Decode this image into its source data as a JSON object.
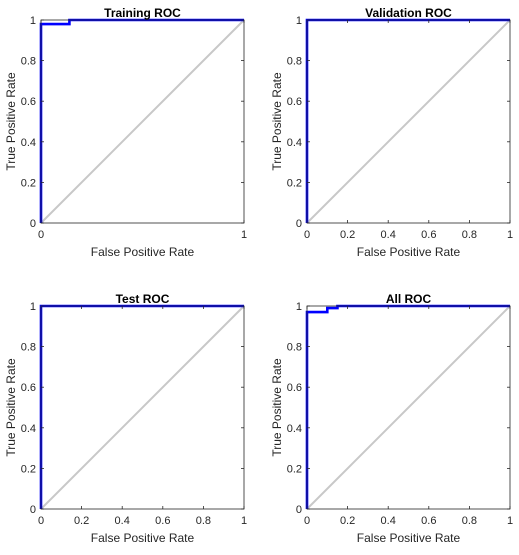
{
  "chart_data": [
    {
      "type": "line",
      "title": "Training ROC",
      "xlabel": "False Positive Rate",
      "ylabel": "True Positive Rate",
      "xlim": [
        0,
        1
      ],
      "ylim": [
        0,
        1
      ],
      "xticks": [
        "0",
        "1"
      ],
      "yticks": [
        "0",
        "0.2",
        "0.4",
        "0.6",
        "0.8",
        "1"
      ],
      "grid": false,
      "legend": "none",
      "series": [
        {
          "color": "#0000ff",
          "x": [
            0,
            0,
            0.14,
            0.14,
            1
          ],
          "y": [
            0,
            0.98,
            0.98,
            1,
            1
          ]
        }
      ],
      "reference_line": {
        "color": "#c8c8c8",
        "x": [
          0,
          1
        ],
        "y": [
          0,
          1
        ]
      }
    },
    {
      "type": "line",
      "title": "Validation ROC",
      "xlabel": "False Positive Rate",
      "ylabel": "True Positive Rate",
      "xlim": [
        0,
        1
      ],
      "ylim": [
        0,
        1
      ],
      "xticks": [
        "0",
        "0.2",
        "0.4",
        "0.6",
        "0.8",
        "1"
      ],
      "yticks": [
        "0",
        "0.2",
        "0.4",
        "0.6",
        "0.8",
        "1"
      ],
      "grid": false,
      "legend": "none",
      "series": [
        {
          "color": "#0000ff",
          "x": [
            0,
            0,
            1
          ],
          "y": [
            0,
            1,
            1
          ]
        }
      ],
      "reference_line": {
        "color": "#c8c8c8",
        "x": [
          0,
          1
        ],
        "y": [
          0,
          1
        ]
      }
    },
    {
      "type": "line",
      "title": "Test ROC",
      "xlabel": "False Positive Rate",
      "ylabel": "True Positive Rate",
      "xlim": [
        0,
        1
      ],
      "ylim": [
        0,
        1
      ],
      "xticks": [
        "0",
        "0.2",
        "0.4",
        "0.6",
        "0.8",
        "1"
      ],
      "yticks": [
        "0",
        "0.2",
        "0.4",
        "0.6",
        "0.8",
        "1"
      ],
      "grid": false,
      "legend": "none",
      "series": [
        {
          "color": "#0000ff",
          "x": [
            0,
            0,
            1
          ],
          "y": [
            0,
            1,
            1
          ]
        }
      ],
      "reference_line": {
        "color": "#c8c8c8",
        "x": [
          0,
          1
        ],
        "y": [
          0,
          1
        ]
      }
    },
    {
      "type": "line",
      "title": "All ROC",
      "xlabel": "False Positive Rate",
      "ylabel": "True Positive Rate",
      "xlim": [
        0,
        1
      ],
      "ylim": [
        0,
        1
      ],
      "xticks": [
        "0",
        "0.2",
        "0.4",
        "0.6",
        "0.8",
        "1"
      ],
      "yticks": [
        "0",
        "0.2",
        "0.4",
        "0.6",
        "0.8",
        "1"
      ],
      "grid": false,
      "legend": "none",
      "series": [
        {
          "color": "#0000ff",
          "x": [
            0,
            0,
            0.1,
            0.1,
            0.15,
            0.15,
            1
          ],
          "y": [
            0,
            0.97,
            0.97,
            0.99,
            0.99,
            1,
            1
          ]
        }
      ],
      "reference_line": {
        "color": "#c8c8c8",
        "x": [
          0,
          1
        ],
        "y": [
          0,
          1
        ]
      }
    }
  ]
}
